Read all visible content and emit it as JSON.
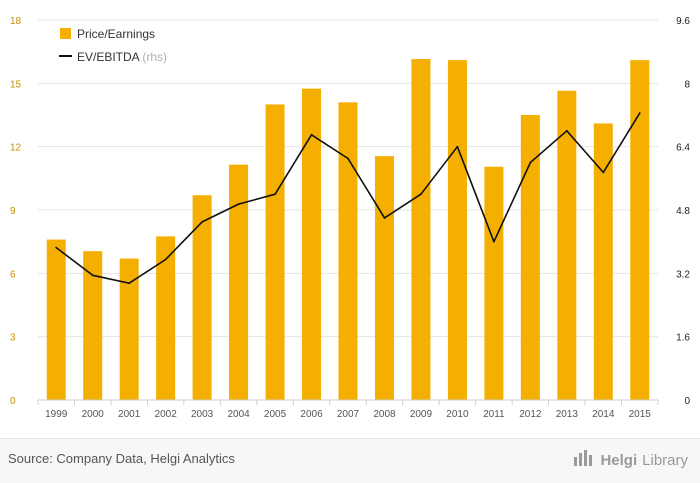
{
  "colors": {
    "bar": "#F5AF00",
    "line": "#111111",
    "grid": "#e5e5e5",
    "axis_text": "#555555",
    "brand": "#9a9a9a"
  },
  "chart_data": {
    "type": "bar",
    "categories": [
      "1999",
      "2000",
      "2001",
      "2002",
      "2003",
      "2004",
      "2005",
      "2006",
      "2007",
      "2008",
      "2009",
      "2010",
      "2011",
      "2012",
      "2013",
      "2014",
      "2015"
    ],
    "series": [
      {
        "name": "Price/Earnings",
        "type": "bar",
        "axis": "left",
        "values": [
          7.6,
          7.05,
          6.7,
          7.75,
          9.7,
          11.15,
          14.0,
          14.75,
          14.1,
          11.55,
          16.15,
          16.1,
          11.05,
          13.5,
          14.65,
          13.1,
          16.1
        ]
      },
      {
        "name": "EV/EBITDA",
        "type": "line",
        "axis": "right",
        "values": [
          3.85,
          3.15,
          2.95,
          3.55,
          4.5,
          4.95,
          5.2,
          6.7,
          6.1,
          4.6,
          5.2,
          6.4,
          4.0,
          6.0,
          6.8,
          5.75,
          7.25
        ]
      }
    ],
    "legend": {
      "position": "top-left",
      "items": [
        {
          "label": "Price/Earnings"
        },
        {
          "label": "EV/EBITDA",
          "suffix": "(rhs)"
        }
      ]
    },
    "left_axis": {
      "min": 0,
      "max": 18,
      "ticks": [
        "0",
        "3",
        "6",
        "9",
        "12",
        "15",
        "18"
      ]
    },
    "right_axis": {
      "min": 0,
      "max": 9.6,
      "ticks": [
        "0",
        "1.6",
        "3.2",
        "4.8",
        "6.4",
        "8",
        "9.6"
      ]
    },
    "grid": true
  },
  "footer": {
    "source": "Source: Company Data, Helgi Analytics",
    "brand_name": "Helgi",
    "brand_suffix": "Library"
  },
  "icons": {
    "brand": "helgi-library-logo-icon"
  }
}
